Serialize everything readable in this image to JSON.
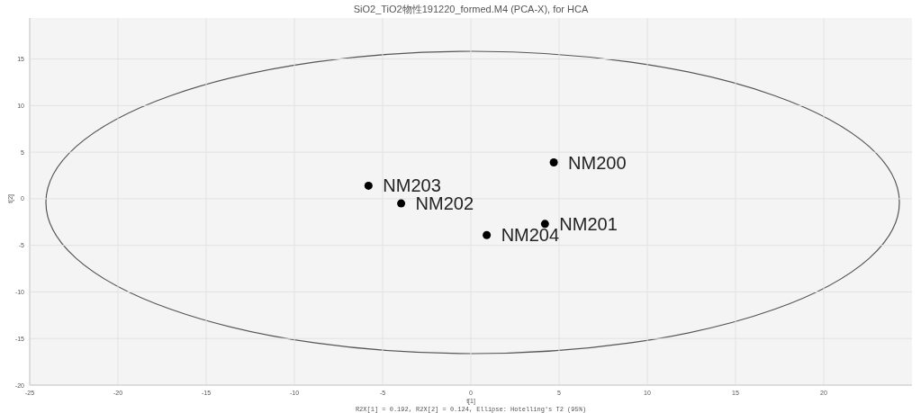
{
  "chart_data": {
    "type": "scatter",
    "title": "SiO2_TiO2物性191220_formed.M4 (PCA-X), for HCA",
    "xlabel": "t[1]",
    "ylabel": "t[2]",
    "annotations": [
      "R2X[1] = 0.192, R2X[2] = 0.124, Ellipse: Hotelling's T2 (95%)"
    ],
    "xlim": [
      -25,
      25
    ],
    "ylim": [
      -20,
      19.4
    ],
    "xticks": [
      -25,
      -20,
      -15,
      -10,
      -5,
      0,
      5,
      10,
      15,
      20
    ],
    "yticks": [
      -20,
      -15,
      -10,
      -5,
      0,
      5,
      10,
      15
    ],
    "grid": true,
    "marker": "circle",
    "series": [
      {
        "name": "NM200",
        "color": "#000000",
        "x": [
          4.7
        ],
        "values": [
          3.9
        ]
      },
      {
        "name": "NM201",
        "color": "#000000",
        "x": [
          4.2
        ],
        "values": [
          -2.7
        ]
      },
      {
        "name": "NM202",
        "color": "#000000",
        "x": [
          -3.95
        ],
        "values": [
          -0.5
        ]
      },
      {
        "name": "NM203",
        "color": "#000000",
        "x": [
          -5.8
        ],
        "values": [
          1.4
        ]
      },
      {
        "name": "NM204",
        "color": "#000000",
        "x": [
          0.9
        ],
        "values": [
          -3.9
        ]
      }
    ]
  }
}
